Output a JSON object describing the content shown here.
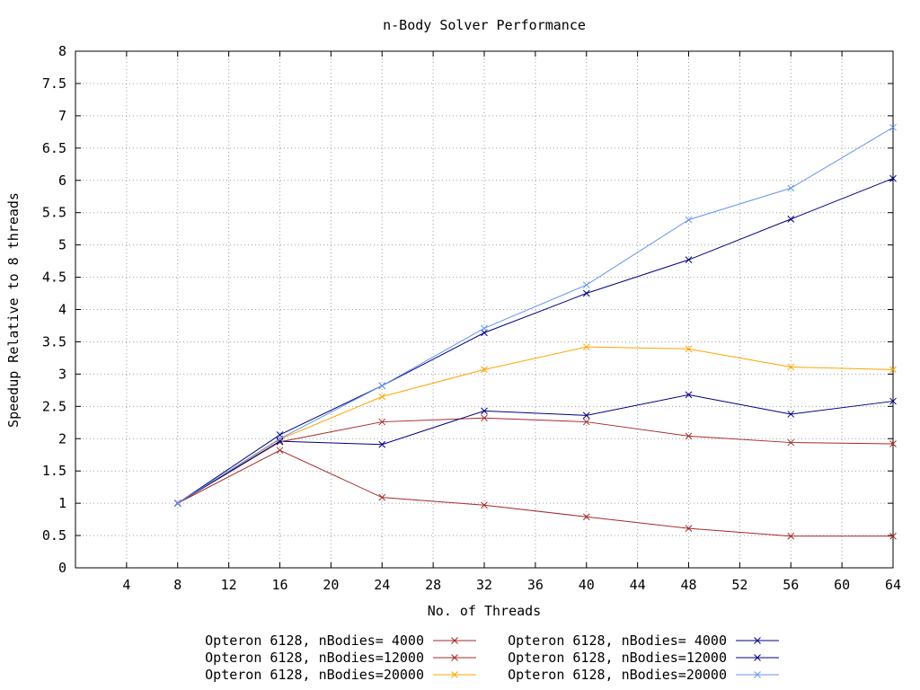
{
  "chart_data": {
    "type": "line",
    "title": "n-Body Solver Performance",
    "xlabel": "No. of Threads",
    "ylabel": "Speedup Relative to 8 threads",
    "xlim": [
      0,
      64
    ],
    "ylim": [
      0,
      8
    ],
    "xticks": [
      4,
      8,
      12,
      16,
      20,
      24,
      28,
      32,
      36,
      40,
      44,
      48,
      52,
      56,
      60,
      64
    ],
    "yticks": [
      0,
      0.5,
      1,
      1.5,
      2,
      2.5,
      3,
      3.5,
      4,
      4.5,
      5,
      5.5,
      6,
      6.5,
      7,
      7.5,
      8
    ],
    "grid": true,
    "legend_position": "bottom",
    "x": [
      8,
      16,
      24,
      32,
      40,
      48,
      56,
      64
    ],
    "series": [
      {
        "name": "Opteron 6128, nBodies= 4000",
        "color": "#a52a2a",
        "marker": "x",
        "values": [
          1.0,
          1.82,
          1.09,
          0.97,
          0.79,
          0.61,
          0.49,
          0.49
        ]
      },
      {
        "name": "Opteron 6128, nBodies=12000",
        "color": "#a52a2a",
        "marker": "x",
        "values": [
          1.0,
          1.95,
          2.26,
          2.32,
          2.26,
          2.04,
          1.94,
          1.92
        ]
      },
      {
        "name": "Opteron 6128, nBodies=20000",
        "color": "#ffa500",
        "marker": "x",
        "values": [
          1.0,
          1.99,
          2.65,
          3.07,
          3.42,
          3.39,
          3.11,
          3.07
        ]
      },
      {
        "name": "Opteron 6128, nBodies= 4000",
        "color": "#000080",
        "marker": "x",
        "values": [
          1.0,
          1.96,
          1.91,
          2.43,
          2.36,
          2.68,
          2.38,
          2.58
        ]
      },
      {
        "name": "Opteron 6128, nBodies=12000",
        "color": "#000080",
        "marker": "x",
        "values": [
          1.0,
          2.06,
          2.82,
          3.64,
          4.25,
          4.77,
          5.4,
          6.03
        ]
      },
      {
        "name": "Opteron 6128, nBodies=20000",
        "color": "#6495ed",
        "marker": "x",
        "values": [
          1.0,
          2.0,
          2.82,
          3.71,
          4.38,
          5.39,
          5.88,
          6.82
        ]
      }
    ]
  }
}
